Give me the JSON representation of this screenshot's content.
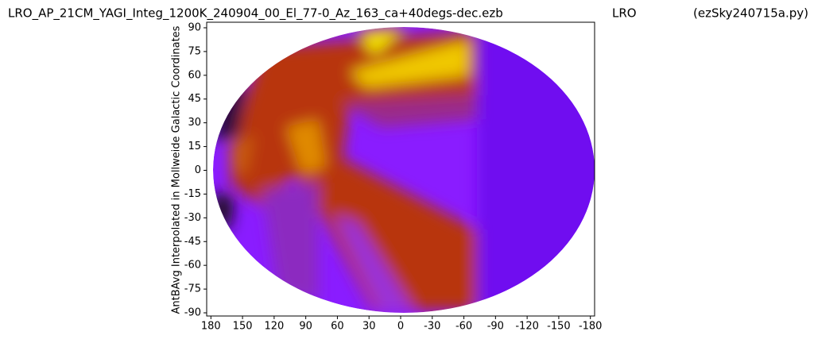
{
  "chart_data": {
    "type": "contour",
    "title": "LRO_AP_21CM_YAGI_Integ_1200K_240904_00_El_77-0_Az_163_ca+40degs-dec.ezb",
    "subtitle": "LRO",
    "program": "(ezSky240715a.py)",
    "y_label": "AntBAvg Interpolated in Mollweide Galactic Coordinates",
    "xlim": [
      184,
      -184
    ],
    "xticks": [
      180,
      150,
      120,
      90,
      60,
      30,
      0,
      -30,
      -60,
      -90,
      -120,
      -150,
      -180
    ],
    "ylim": [
      -92,
      93.5
    ],
    "yticks": [
      90,
      75,
      60,
      45,
      30,
      15,
      0,
      -15,
      -30,
      -45,
      -60,
      -75,
      -90
    ]
  }
}
